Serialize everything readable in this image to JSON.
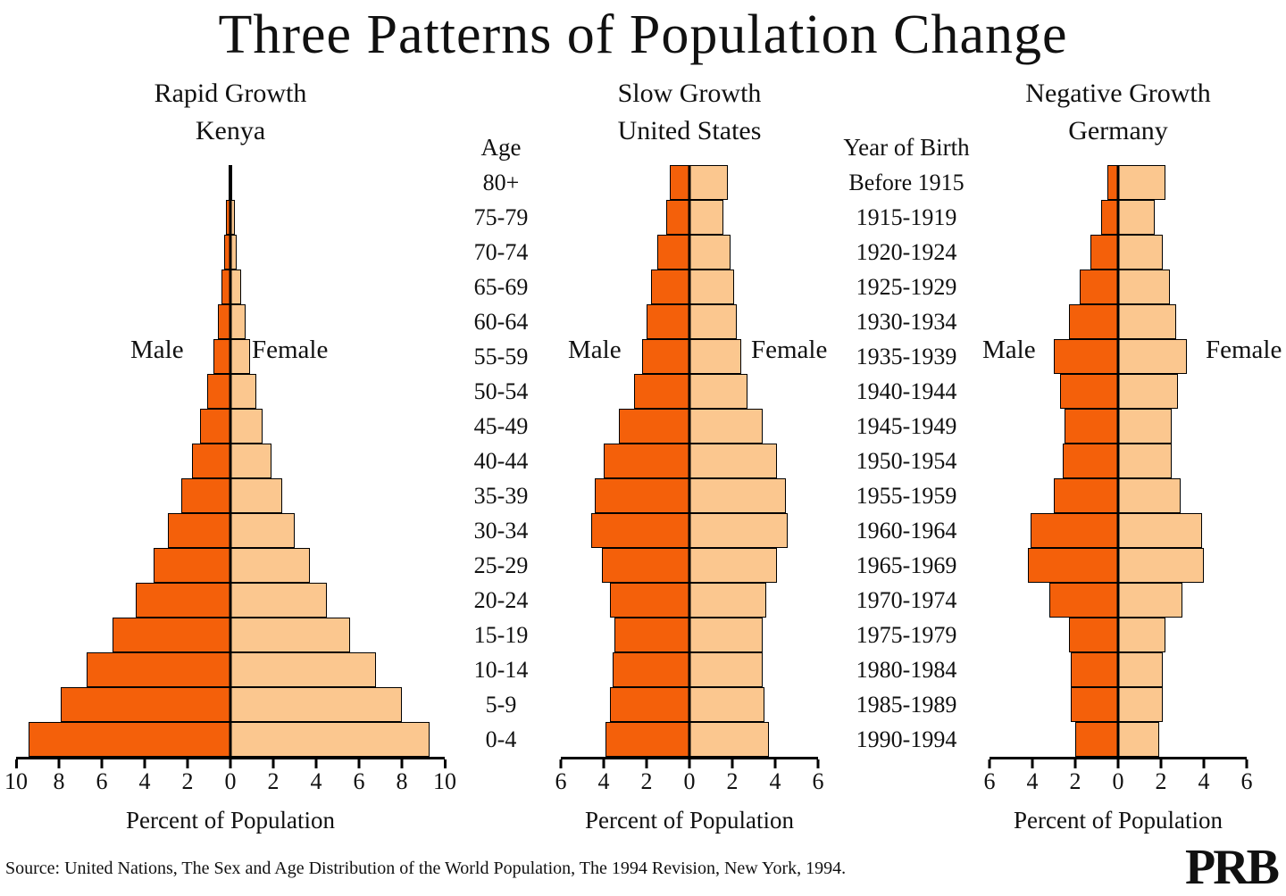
{
  "title": "Three Patterns of Population Change",
  "age_header": "Age",
  "age_labels": [
    "80+",
    "75-79",
    "70-74",
    "65-69",
    "60-64",
    "55-59",
    "50-54",
    "45-49",
    "40-44",
    "35-39",
    "30-34",
    "25-29",
    "20-24",
    "15-19",
    "10-14",
    "5-9",
    "0-4"
  ],
  "year_header": "Year of Birth",
  "birth_labels": [
    "Before 1915",
    "1915-1919",
    "1920-1924",
    "1925-1929",
    "1930-1934",
    "1935-1939",
    "1940-1944",
    "1945-1949",
    "1950-1954",
    "1955-1959",
    "1960-1964",
    "1965-1969",
    "1970-1974",
    "1975-1979",
    "1980-1984",
    "1985-1989",
    "1990-1994"
  ],
  "colors": {
    "male": "#F4600A",
    "female": "#FBC78F",
    "axis": "#000000",
    "background": "#FFFFFF"
  },
  "source": "Source: United Nations, The Sex and Age Distribution of the World Population, The 1994 Revision, New York, 1994.",
  "logo": "PRB",
  "chart_data": [
    {
      "type": "bar",
      "variant": "population-pyramid",
      "growth_label": "Rapid Growth",
      "region": "Kenya",
      "male_label": "Male",
      "female_label": "Female",
      "xlabel": "Percent of Population",
      "xmax": 10,
      "ticks": [
        10,
        8,
        6,
        4,
        2,
        0,
        2,
        4,
        6,
        8,
        10
      ],
      "categories": [
        "80+",
        "75-79",
        "70-74",
        "65-69",
        "60-64",
        "55-59",
        "50-54",
        "45-49",
        "40-44",
        "35-39",
        "30-34",
        "25-29",
        "20-24",
        "15-19",
        "10-14",
        "5-9",
        "0-4"
      ],
      "series": [
        {
          "name": "Male",
          "values": [
            0.1,
            0.2,
            0.3,
            0.4,
            0.6,
            0.8,
            1.1,
            1.4,
            1.8,
            2.3,
            2.9,
            3.6,
            4.4,
            5.5,
            6.7,
            7.9,
            9.4
          ]
        },
        {
          "name": "Female",
          "values": [
            0.1,
            0.2,
            0.3,
            0.5,
            0.7,
            0.9,
            1.2,
            1.5,
            1.9,
            2.4,
            3.0,
            3.7,
            4.5,
            5.6,
            6.8,
            8.0,
            9.3
          ]
        }
      ],
      "legend_position": "none",
      "grid": false
    },
    {
      "type": "bar",
      "variant": "population-pyramid",
      "growth_label": "Slow Growth",
      "region": "United States",
      "male_label": "Male",
      "female_label": "Female",
      "xlabel": "Percent of Population",
      "xmax": 6,
      "ticks": [
        6,
        4,
        2,
        0,
        2,
        4,
        6
      ],
      "categories": [
        "80+",
        "75-79",
        "70-74",
        "65-69",
        "60-64",
        "55-59",
        "50-54",
        "45-49",
        "40-44",
        "35-39",
        "30-34",
        "25-29",
        "20-24",
        "15-19",
        "10-14",
        "5-9",
        "0-4"
      ],
      "series": [
        {
          "name": "Male",
          "values": [
            0.9,
            1.1,
            1.5,
            1.8,
            2.0,
            2.2,
            2.6,
            3.3,
            4.0,
            4.4,
            4.6,
            4.1,
            3.7,
            3.5,
            3.6,
            3.7,
            3.9
          ]
        },
        {
          "name": "Female",
          "values": [
            1.8,
            1.6,
            1.9,
            2.1,
            2.2,
            2.4,
            2.7,
            3.4,
            4.1,
            4.5,
            4.6,
            4.1,
            3.6,
            3.4,
            3.4,
            3.5,
            3.7
          ]
        }
      ],
      "legend_position": "none",
      "grid": false
    },
    {
      "type": "bar",
      "variant": "population-pyramid",
      "growth_label": "Negative Growth",
      "region": "Germany",
      "male_label": "Male",
      "female_label": "Female",
      "xlabel": "Percent of Population",
      "xmax": 6,
      "ticks": [
        6,
        4,
        2,
        0,
        2,
        4,
        6
      ],
      "categories": [
        "80+",
        "75-79",
        "70-74",
        "65-69",
        "60-64",
        "55-59",
        "50-54",
        "45-49",
        "40-44",
        "35-39",
        "30-34",
        "25-29",
        "20-24",
        "15-19",
        "10-14",
        "5-9",
        "0-4"
      ],
      "series": [
        {
          "name": "Male",
          "values": [
            0.5,
            0.8,
            1.3,
            1.8,
            2.3,
            3.0,
            2.7,
            2.5,
            2.6,
            3.0,
            4.1,
            4.2,
            3.2,
            2.3,
            2.2,
            2.2,
            2.0
          ]
        },
        {
          "name": "Female",
          "values": [
            2.2,
            1.7,
            2.1,
            2.4,
            2.7,
            3.2,
            2.8,
            2.5,
            2.5,
            2.9,
            3.9,
            4.0,
            3.0,
            2.2,
            2.1,
            2.1,
            1.9
          ]
        }
      ],
      "legend_position": "none",
      "grid": false
    }
  ]
}
